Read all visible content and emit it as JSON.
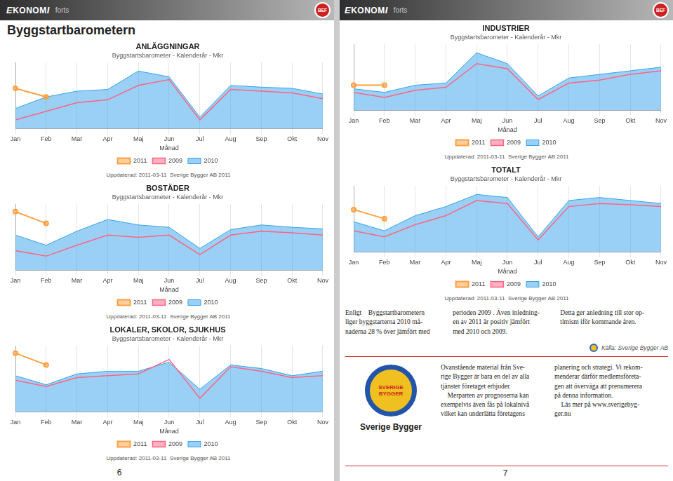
{
  "chart_data": [
    {
      "type": "line",
      "title": "ANLÄGGNINGAR",
      "subtitle": "Byggstartsbarometer - Kalenderår - Mkr",
      "xlabel": "Månad",
      "categories": [
        "Jan",
        "Feb",
        "Mar",
        "Apr",
        "Maj",
        "Jun",
        "Jul",
        "Aug",
        "Sep",
        "Okt",
        "Nov"
      ],
      "series": [
        {
          "name": "2010",
          "type": "area",
          "values": [
            3.5,
            5.5,
            6.5,
            6.8,
            10.0,
            9.0,
            2.0,
            7.5,
            7.2,
            7.0,
            6.0
          ]
        },
        {
          "name": "2009",
          "type": "line",
          "values": [
            1.5,
            3.0,
            4.5,
            5.0,
            7.5,
            8.5,
            1.5,
            6.8,
            6.5,
            6.2,
            5.2
          ]
        },
        {
          "name": "2011",
          "type": "line",
          "marker": "circle",
          "values": [
            7.0,
            5.5,
            null,
            null,
            null,
            null,
            null,
            null,
            null,
            null,
            null
          ]
        }
      ],
      "ylim": [
        0,
        11.5
      ],
      "grid": true,
      "legend": "bottom",
      "tick_labels": "x",
      "annotations": [
        "Uppdaterad: 2011-03-11  Sverige Bygger AB 2011",
        "Byggstartbarometern",
        "EKONOMI",
        "forts",
        "BEF",
        "6"
      ]
    },
    {
      "type": "line",
      "title": "BOSTÄDER",
      "subtitle": "Byggstartsbarometer - Kalenderår - Mkr",
      "xlabel": "Månad",
      "categories": [
        "Jan",
        "Feb",
        "Mar",
        "Apr",
        "Maj",
        "Jun",
        "Jul",
        "Aug",
        "Sep",
        "Okt",
        "Nov"
      ],
      "series": [
        {
          "name": "2010",
          "type": "area",
          "values": [
            4.5,
            3.2,
            5.0,
            6.5,
            5.8,
            5.5,
            2.8,
            5.2,
            5.8,
            5.5,
            5.3
          ]
        },
        {
          "name": "2009",
          "type": "line",
          "values": [
            2.5,
            1.8,
            3.2,
            4.5,
            4.2,
            4.5,
            2.0,
            4.5,
            5.0,
            4.8,
            4.5
          ]
        },
        {
          "name": "2011",
          "type": "line",
          "marker": "circle",
          "values": [
            7.5,
            6.0,
            null,
            null,
            null,
            null,
            null,
            null,
            null,
            null,
            null
          ]
        }
      ],
      "ylim": [
        0,
        8.475
      ],
      "grid": true,
      "legend": "bottom",
      "tick_labels": "x",
      "annotations": [
        "Uppdaterad: 2011-03-11  Sverige Bygger AB 2011"
      ]
    },
    {
      "type": "line",
      "title": "LOKALER, SKOLOR, SJUKHUS",
      "subtitle": "Byggstartsbarometer - Kalenderår - Mkr",
      "xlabel": "Månad",
      "categories": [
        "Jan",
        "Feb",
        "Mar",
        "Apr",
        "Maj",
        "Jun",
        "Jul",
        "Aug",
        "Sep",
        "Okt",
        "Nov"
      ],
      "series": [
        {
          "name": "2010",
          "type": "area",
          "values": [
            4.0,
            3.0,
            4.2,
            4.5,
            4.5,
            5.5,
            2.5,
            5.2,
            4.8,
            4.0,
            4.5
          ]
        },
        {
          "name": "2009",
          "type": "line",
          "values": [
            3.5,
            2.8,
            3.8,
            4.0,
            4.2,
            5.8,
            1.5,
            5.0,
            4.5,
            3.8,
            4.0
          ]
        },
        {
          "name": "2011",
          "type": "line",
          "marker": "circle",
          "values": [
            6.5,
            5.2,
            null,
            null,
            null,
            null,
            null,
            null,
            null,
            null,
            null
          ]
        }
      ],
      "ylim": [
        0,
        7.325
      ],
      "grid": true,
      "legend": "bottom",
      "tick_labels": "x",
      "annotations": [
        "Uppdaterad: 2011-03-11  Sverige Bygger AB 2011"
      ]
    },
    {
      "type": "line",
      "title": "INDUSTRIER",
      "subtitle": "Byggstartsbarometer - Kalenderår - Mkr",
      "xlabel": "Månad",
      "categories": [
        "Jan",
        "Feb",
        "Mar",
        "Apr",
        "Maj",
        "Jun",
        "Jul",
        "Aug",
        "Sep",
        "Okt",
        "Nov"
      ],
      "series": [
        {
          "name": "2010",
          "type": "area",
          "values": [
            3.0,
            2.5,
            3.5,
            3.8,
            8.0,
            6.5,
            2.0,
            4.5,
            5.0,
            5.5,
            6.0
          ]
        },
        {
          "name": "2009",
          "type": "line",
          "values": [
            2.5,
            1.8,
            2.8,
            3.2,
            6.5,
            5.8,
            1.5,
            3.8,
            4.2,
            5.0,
            5.5
          ]
        },
        {
          "name": "2011",
          "type": "line",
          "marker": "circle",
          "values": [
            3.5,
            3.5,
            null,
            null,
            null,
            null,
            null,
            null,
            null,
            null,
            null
          ]
        }
      ],
      "ylim": [
        0,
        9.2
      ],
      "grid": true,
      "legend": "bottom",
      "tick_labels": "x",
      "annotations": [
        "Uppdaterad: 2011-03-11  Sverige Bygger AB 2011",
        "EKONOMI",
        "forts",
        "BEF"
      ]
    },
    {
      "type": "line",
      "title": "TOTALT",
      "subtitle": "Byggstartsbarometer - Kalenderår - Mkr",
      "xlabel": "Månad",
      "categories": [
        "Jan",
        "Feb",
        "Mar",
        "Apr",
        "Maj",
        "Jun",
        "Jul",
        "Aug",
        "Sep",
        "Okt",
        "Nov"
      ],
      "series": [
        {
          "name": "2010",
          "type": "area",
          "values": [
            5.0,
            3.5,
            6.0,
            7.5,
            9.5,
            9.0,
            2.5,
            8.5,
            9.0,
            8.5,
            8.0
          ]
        },
        {
          "name": "2009",
          "type": "line",
          "values": [
            3.5,
            2.5,
            4.5,
            6.0,
            8.5,
            8.0,
            2.0,
            7.5,
            8.0,
            7.8,
            7.5
          ]
        },
        {
          "name": "2011",
          "type": "line",
          "marker": "circle",
          "values": [
            7.0,
            5.5,
            null,
            null,
            null,
            null,
            null,
            null,
            null,
            null,
            null
          ]
        }
      ],
      "ylim": [
        0,
        10.925
      ],
      "grid": true,
      "legend": "bottom",
      "tick_labels": "x",
      "annotations": [
        "Uppdaterad: 2011-03-11  Sverige Bygger AB 2011",
        "Enligt    Byggstartbarometern\nliger byggstarterna 2010 må-\nnaderna 28 % över jämfört med",
        "perioden 2009 . Även inledning-\nen av 2011 är positiv jämfört\nmed 2010 och 2009.",
        "Detta ger anledning till stor op-\ntimism iför kommande åren.",
        "Källa: Sverige Bygger AB",
        "SVERIGE",
        "BYGGER",
        "Sverige Bygger",
        "Ovanstående material från Sve-\nrige Bygger är bara en del av alla\ntjänster företaget erbjuder.\n    Merparten av prognoserna kan\nexempelvis även fås på lokalnivå\nvilket kan underlätta företagens",
        "planering och strategi. Vi rekom-\nmenderar därför medlemsföreta-\ngen att överväga att prenumerera\npå denna information.\n    Läs mer på www.sverigebyg-\nger.nu",
        "7"
      ]
    }
  ]
}
